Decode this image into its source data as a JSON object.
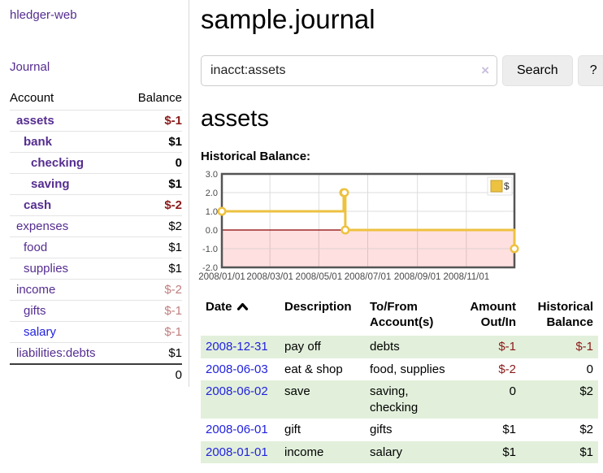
{
  "colors": {
    "link-purple": "#552d90",
    "link-blue": "#2222dd",
    "neg-red": "#8b1a1a",
    "neg-muted": "#bf7e7e",
    "row-green": "#e2f0db",
    "row-line": "#e4e4e4",
    "sep-border": "#d8d8d8",
    "btn-bg": "#ededed",
    "btn-border": "#e2e2e2",
    "clear-lavender": "#c9bedf"
  },
  "sidebar": {
    "brand": "hledger-web",
    "journal_label": "Journal",
    "accounts_table": {
      "headers": [
        "Account",
        "Balance"
      ],
      "rows": [
        {
          "name": "assets",
          "indent": 0,
          "bold": true,
          "balance": "$-1",
          "balance_style": "neg",
          "link_color": "purple"
        },
        {
          "name": "bank",
          "indent": 1,
          "bold": true,
          "balance": "$1",
          "balance_style": "pos",
          "link_color": "purple"
        },
        {
          "name": "checking",
          "indent": 2,
          "bold": true,
          "balance": "0",
          "balance_style": "pos",
          "link_color": "purple"
        },
        {
          "name": "saving",
          "indent": 2,
          "bold": true,
          "balance": "$1",
          "balance_style": "pos",
          "link_color": "purple"
        },
        {
          "name": "cash",
          "indent": 1,
          "bold": true,
          "balance": "$-2",
          "balance_style": "neg",
          "link_color": "purple"
        },
        {
          "name": "expenses",
          "indent": 0,
          "bold": false,
          "balance": "$2",
          "balance_style": "pos",
          "link_color": "purple"
        },
        {
          "name": "food",
          "indent": 1,
          "bold": false,
          "balance": "$1",
          "balance_style": "pos",
          "link_color": "purple"
        },
        {
          "name": "supplies",
          "indent": 1,
          "bold": false,
          "balance": "$1",
          "balance_style": "pos",
          "link_color": "purple"
        },
        {
          "name": "income",
          "indent": 0,
          "bold": false,
          "balance": "$-2",
          "balance_style": "negmuted",
          "link_color": "purple"
        },
        {
          "name": "gifts",
          "indent": 1,
          "bold": false,
          "balance": "$-1",
          "balance_style": "negmuted",
          "link_color": "purple"
        },
        {
          "name": "salary",
          "indent": 1,
          "bold": false,
          "balance": "$-1",
          "balance_style": "negmuted",
          "link_color": "blue"
        },
        {
          "name": "liabilities:debts",
          "indent": 0,
          "bold": false,
          "balance": "$1",
          "balance_style": "pos",
          "link_color": "purple"
        }
      ],
      "total": "0"
    }
  },
  "header": {
    "title": "sample.journal"
  },
  "search": {
    "value": "inacct:assets",
    "clear_icon": "×",
    "button": "Search",
    "help_button": "?"
  },
  "account_page": {
    "heading": "assets",
    "chart_title": "Historical Balance:"
  },
  "chart_data": {
    "type": "line",
    "style": "step-after",
    "title": "Historical Balance",
    "series": [
      {
        "name": "$",
        "color": "#edc240",
        "points": [
          [
            "2008-01-01",
            1
          ],
          [
            "2008-06-01",
            2
          ],
          [
            "2008-06-02",
            2
          ],
          [
            "2008-06-03",
            0
          ],
          [
            "2008-12-31",
            -1
          ]
        ]
      }
    ],
    "x_domain": [
      "2008-01-01",
      "2008-12-31"
    ],
    "x_ticks": [
      {
        "date": "2008-01-01",
        "label": "2008/01/01"
      },
      {
        "date": "2008-03-01",
        "label": "2008/03/01"
      },
      {
        "date": "2008-05-01",
        "label": "2008/05/01"
      },
      {
        "date": "2008-07-01",
        "label": "2008/07/01"
      },
      {
        "date": "2008-09-01",
        "label": "2008/09/01"
      },
      {
        "date": "2008-11-01",
        "label": "2008/11/01"
      }
    ],
    "ylim": [
      -2,
      3
    ],
    "y_ticks": [
      3,
      2,
      1,
      0,
      -1,
      -2
    ],
    "y_tick_labels": [
      "3.0",
      "2.0",
      "1.0",
      "0.0",
      "-1.0",
      "-2.0"
    ],
    "grid": true,
    "legend": {
      "label": "$",
      "position": "top-right"
    },
    "zero_line_color": "#8b0000",
    "negative_region_color": "rgba(255,0,0,0.12)",
    "gridline_color": "#dcdcdc",
    "border_color": "#545454",
    "tick_label_color": "#4a4a4a"
  },
  "register": {
    "headers": [
      "Date",
      "Description",
      "To/From Account(s)",
      "Amount Out/In",
      "Historical Balance"
    ],
    "sort": "date-ascending-indicator",
    "rows": [
      {
        "date": "2008-12-31",
        "description": "pay off",
        "accounts": "debts",
        "amount": "$-1",
        "amount_neg": true,
        "balance": "$-1",
        "balance_neg": true
      },
      {
        "date": "2008-06-03",
        "description": "eat & shop",
        "accounts": "food, supplies",
        "amount": "$-2",
        "amount_neg": true,
        "balance": "0",
        "balance_neg": false
      },
      {
        "date": "2008-06-02",
        "description": "save",
        "accounts": "saving, checking",
        "amount": "0",
        "amount_neg": false,
        "balance": "$2",
        "balance_neg": false
      },
      {
        "date": "2008-06-01",
        "description": "gift",
        "accounts": "gifts",
        "amount": "$1",
        "amount_neg": false,
        "balance": "$2",
        "balance_neg": false
      },
      {
        "date": "2008-01-01",
        "description": "income",
        "accounts": "salary",
        "amount": "$1",
        "amount_neg": false,
        "balance": "$1",
        "balance_neg": false
      }
    ]
  }
}
